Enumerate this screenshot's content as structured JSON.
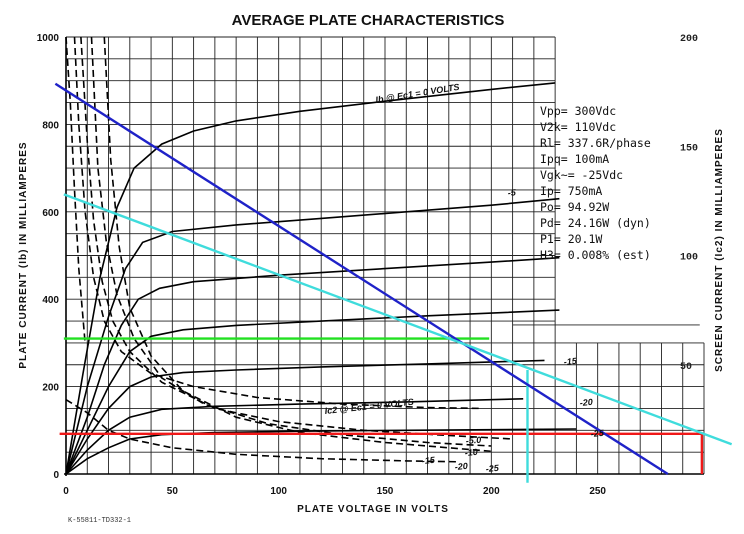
{
  "chart_data": {
    "type": "line",
    "title": "AVERAGE PLATE CHARACTERISTICS",
    "xlabel": "PLATE VOLTAGE IN VOLTS",
    "ylabel": "PLATE CURRENT (Ib) IN MILLIAMPERES",
    "y2label": "SCREEN CURRENT (Ic2) IN MILLIAMPERES",
    "xlim": [
      0,
      300
    ],
    "ylim": [
      0,
      1000
    ],
    "y2lim": [
      0,
      200
    ],
    "grid": true,
    "xticks": [
      "0",
      "50",
      "100",
      "150",
      "200",
      "250"
    ],
    "yticks": [
      "0",
      "200",
      "400",
      "600",
      "800",
      "1000"
    ],
    "y2ticks": [
      "50",
      "100",
      "150",
      "200"
    ],
    "footnote": "K-55811-TD332-1",
    "annotations": {
      "plate_family": "Ib @ Ec1 = 0 VOLTS",
      "screen_family": "Ic2 @ Ec1 = 0 VOLTS",
      "plate_labels": [
        "-5",
        "-15",
        "-20",
        "-25"
      ],
      "screen_labels": [
        "-5.0",
        "-10",
        "-15",
        "-20",
        "-25"
      ]
    },
    "info": [
      "Vpp= 300Vdc",
      "V2k= 110Vdc",
      "Rl= 337.6R/phase",
      "Ipq= 100mA",
      "Vgk~= -25Vdc",
      "Ip= 750mA",
      "Po= 94.92W",
      "Pd= 24.16W (dyn)",
      "P1= 20.1W",
      "H3= 0.008% (est)"
    ],
    "plate_curves": [
      {
        "x": [
          0,
          8,
          16,
          24,
          32,
          45,
          60,
          80,
          110,
          150,
          200,
          230
        ],
        "y": [
          0,
          230,
          450,
          610,
          700,
          755,
          785,
          808,
          830,
          853,
          880,
          895
        ]
      },
      {
        "x": [
          0,
          10,
          20,
          28,
          36,
          50,
          80,
          120,
          160,
          200,
          232
        ],
        "y": [
          0,
          200,
          360,
          470,
          530,
          555,
          570,
          585,
          600,
          615,
          630
        ]
      },
      {
        "x": [
          0,
          10,
          18,
          26,
          34,
          44,
          60,
          100,
          150,
          200,
          232
        ],
        "y": [
          0,
          130,
          250,
          340,
          400,
          425,
          440,
          455,
          470,
          485,
          495
        ]
      },
      {
        "x": [
          0,
          10,
          20,
          30,
          40,
          55,
          80,
          120,
          170,
          232
        ],
        "y": [
          0,
          100,
          200,
          280,
          315,
          330,
          340,
          350,
          362,
          375
        ]
      },
      {
        "x": [
          0,
          10,
          20,
          30,
          40,
          55,
          80,
          120,
          170,
          225
        ],
        "y": [
          0,
          80,
          150,
          200,
          222,
          232,
          238,
          245,
          252,
          260
        ]
      },
      {
        "x": [
          0,
          10,
          20,
          30,
          45,
          70,
          110,
          160,
          215
        ],
        "y": [
          0,
          55,
          100,
          130,
          148,
          155,
          160,
          165,
          172
        ]
      },
      {
        "x": [
          0,
          10,
          20,
          30,
          45,
          70,
          110,
          160,
          240
        ],
        "y": [
          0,
          35,
          60,
          80,
          90,
          95,
          98,
          100,
          103
        ]
      }
    ],
    "screen_curves": [
      {
        "x": [
          0,
          2,
          4,
          6,
          9
        ],
        "y": [
          1000,
          850,
          650,
          470,
          300
        ]
      },
      {
        "x": [
          4,
          6,
          9,
          13,
          18,
          26,
          40,
          60,
          90,
          130,
          170,
          195
        ],
        "y": [
          1000,
          800,
          600,
          450,
          350,
          280,
          230,
          200,
          175,
          160,
          152,
          150
        ]
      },
      {
        "x": [
          7,
          10,
          13,
          17,
          22,
          30,
          45,
          70,
          100,
          140,
          180,
          210
        ],
        "y": [
          1000,
          760,
          580,
          440,
          350,
          280,
          210,
          150,
          120,
          100,
          88,
          80
        ]
      },
      {
        "x": [
          12,
          15,
          19,
          24,
          32,
          45,
          65,
          95,
          130,
          170,
          200
        ],
        "y": [
          1000,
          700,
          530,
          410,
          310,
          220,
          160,
          115,
          90,
          72,
          64
        ]
      },
      {
        "x": [
          18,
          21,
          25,
          30,
          40,
          55,
          80,
          110,
          150,
          180,
          200
        ],
        "y": [
          1000,
          720,
          520,
          380,
          270,
          190,
          130,
          95,
          72,
          60,
          52
        ]
      },
      {
        "x": [
          0,
          10,
          20,
          30,
          50,
          80,
          120,
          160,
          185
        ],
        "y": [
          170,
          140,
          100,
          80,
          60,
          45,
          35,
          30,
          28
        ]
      }
    ],
    "load_lines": [
      {
        "name": "blue",
        "color": "#1f22c8",
        "x": [
          -5,
          283
        ],
        "y": [
          893,
          0
        ]
      },
      {
        "name": "cyan",
        "color": "#3fdcdc",
        "x": [
          -1,
          313
        ],
        "y": [
          640,
          68
        ]
      }
    ],
    "markers": [
      {
        "name": "green",
        "color": "#22e020",
        "x": [
          -1,
          199
        ],
        "y": [
          310,
          310
        ]
      },
      {
        "name": "red",
        "color": "#f01818",
        "x": [
          -3,
          299
        ],
        "y": [
          92,
          92
        ]
      },
      {
        "name": "red-drop",
        "color": "#f01818",
        "x": [
          299,
          299
        ],
        "y": [
          92,
          0
        ]
      },
      {
        "name": "cyan-drop",
        "color": "#3fdcdc",
        "x": [
          217,
          217
        ],
        "y": [
          238,
          -20
        ]
      }
    ],
    "box_line": {
      "x": [
        210,
        298
      ],
      "y": [
        341,
        341
      ]
    }
  }
}
